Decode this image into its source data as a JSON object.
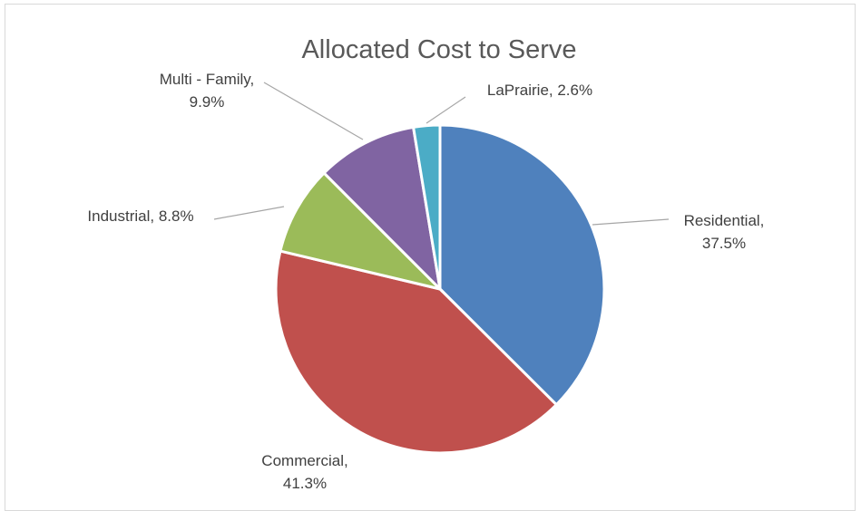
{
  "chart_data": {
    "type": "pie",
    "title": "Allocated Cost to Serve",
    "slices": [
      {
        "category": "Residential",
        "percent": 37.5,
        "color": "#4f81bd",
        "label_lines": [
          "Residential,",
          "37.5%"
        ]
      },
      {
        "category": "Commercial",
        "percent": 41.3,
        "color": "#c0504d",
        "label_lines": [
          "Commercial,",
          "41.3%"
        ]
      },
      {
        "category": "Industrial",
        "percent": 8.8,
        "color": "#9bbb59",
        "label_lines": [
          "Industrial, 8.8%"
        ]
      },
      {
        "category": "Multi - Family",
        "percent": 9.9,
        "color": "#8064a2",
        "label_lines": [
          "Multi - Family,",
          "9.9%"
        ]
      },
      {
        "category": "LaPrairie",
        "percent": 2.6,
        "color": "#4bacc6",
        "label_lines": [
          "LaPrairie, 2.6%"
        ]
      }
    ],
    "start_angle": "12 o'clock",
    "direction": "clockwise",
    "legend": "none",
    "data_labels": "category name and percentage, outside with leader lines"
  }
}
